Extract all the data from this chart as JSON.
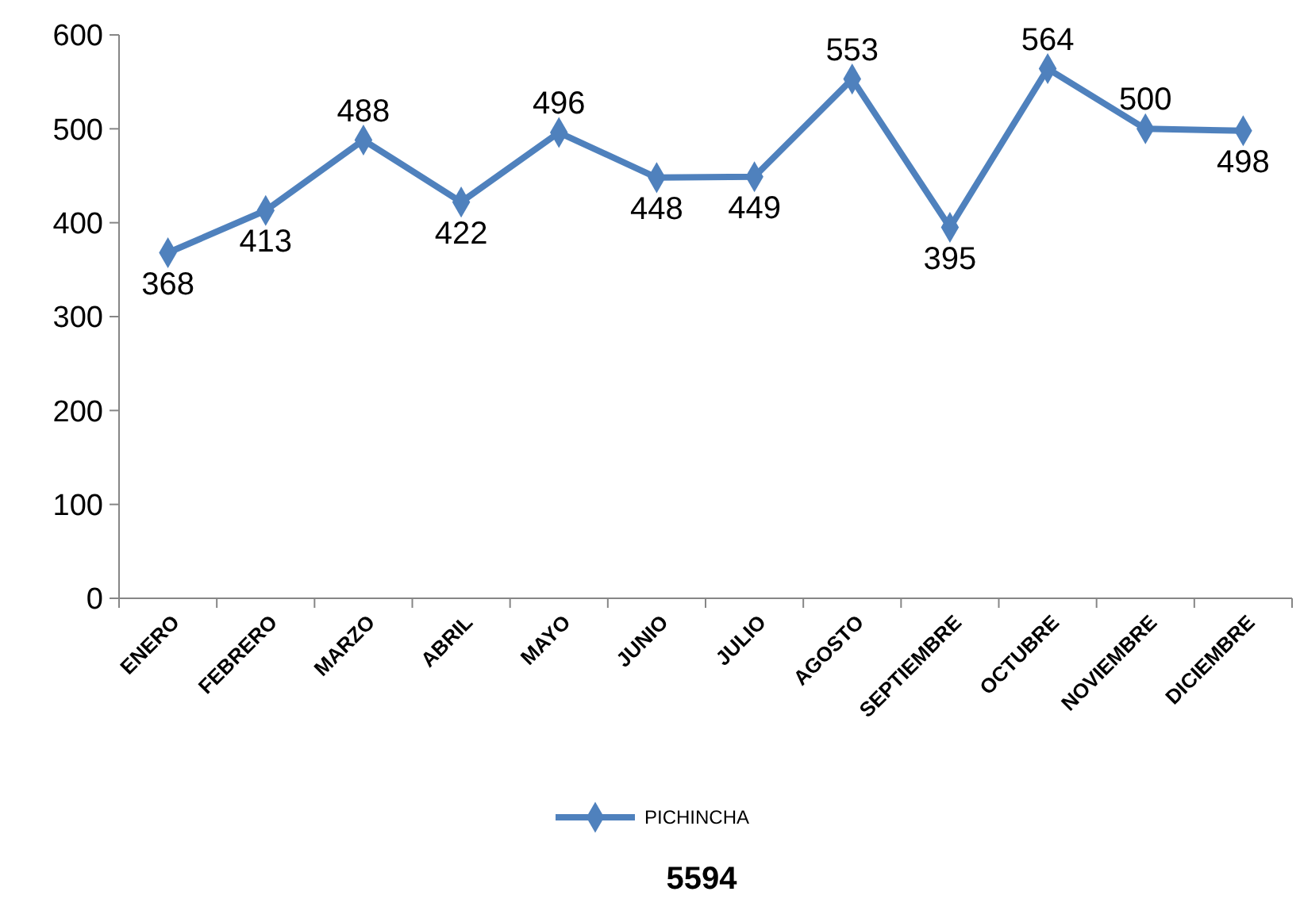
{
  "chart_data": {
    "type": "line",
    "categories": [
      "ENERO",
      "FEBRERO",
      "MARZO",
      "ABRIL",
      "MAYO",
      "JUNIO",
      "JULIO",
      "AGOSTO",
      "SEPTIEMBRE",
      "OCTUBRE",
      "NOVIEMBRE",
      "DICIEMBRE"
    ],
    "series": [
      {
        "name": "PICHINCHA",
        "color": "#4f81bd",
        "values": [
          368,
          413,
          488,
          422,
          496,
          448,
          449,
          553,
          395,
          564,
          500,
          498
        ]
      }
    ],
    "ylim": [
      0,
      600
    ],
    "yticks": [
      0,
      100,
      200,
      300,
      400,
      500,
      600
    ],
    "data_labels": true,
    "marker": "diamond",
    "line_style": "solid",
    "legend": "bottom",
    "grid": false,
    "annotations": [
      "5594"
    ]
  }
}
